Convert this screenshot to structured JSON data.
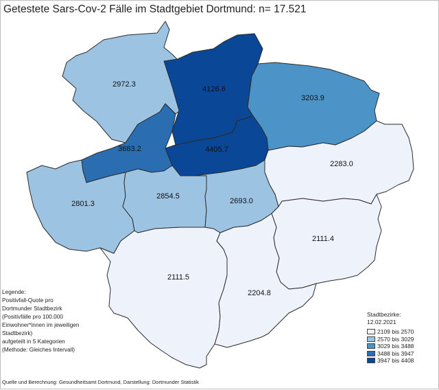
{
  "title": "Getestete Sars-Cov-2 Fälle im Stadtgebiet Dortmund: n= 17.521",
  "districts": [
    {
      "id": "northwest",
      "value": "2972.3",
      "category": 1
    },
    {
      "id": "center-north",
      "value": "4126.6",
      "category": 4
    },
    {
      "id": "northeast",
      "value": "3203.9",
      "category": 2
    },
    {
      "id": "west-center",
      "value": "3683.2",
      "category": 3
    },
    {
      "id": "center",
      "value": "4405.7",
      "category": 4
    },
    {
      "id": "east",
      "value": "2283.0",
      "category": 0
    },
    {
      "id": "west",
      "value": "2801.3",
      "category": 1
    },
    {
      "id": "south-west-center",
      "value": "2854.5",
      "category": 1
    },
    {
      "id": "south-center",
      "value": "2693.0",
      "category": 1
    },
    {
      "id": "southeast",
      "value": "2111.4",
      "category": 0
    },
    {
      "id": "southwest",
      "value": "2111.5",
      "category": 0
    },
    {
      "id": "south",
      "value": "2204.8",
      "category": 0
    }
  ],
  "legend_left": [
    "Legende:",
    "Positivfall-Quote pro",
    "Dortmunder Stadtbezirk",
    "(Positivfälle pro 100.000",
    "Einwohner*innen im jeweiligen",
    "Stadtbezirk)",
    "aufgeteilt in 5 Kategorien",
    "(Methode: Gleiches Intervall)"
  ],
  "legend": {
    "heading": "Stadtbezirke:",
    "date": "12.02.2021",
    "classes": [
      {
        "label": "2109 bis 2570",
        "color": "#eef2fb"
      },
      {
        "label": "2570 bis 3029",
        "color": "#9dc3e3"
      },
      {
        "label": "3029 bis 3488",
        "color": "#4c93c7"
      },
      {
        "label": "3488 bis 3947",
        "color": "#2a6eb1"
      },
      {
        "label": "3947 bis 4408",
        "color": "#0a4797"
      }
    ]
  },
  "source": "Quelle und Berechnung: Gesundheitsamt Dortmund, Darstellung: Dortmunder Statistik"
}
